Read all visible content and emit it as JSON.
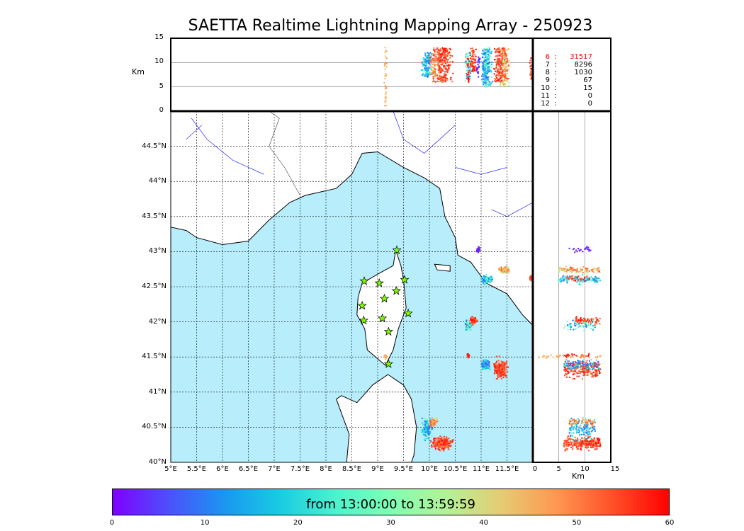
{
  "title": "SAETTA Realtime Lightning Mapping Array - 250923",
  "top_panel": {
    "ylabel": "Km",
    "yticks": [
      "0",
      "5",
      "10",
      "15"
    ]
  },
  "right_panel": {
    "xlabel": "Km",
    "xticks": [
      "0",
      "5",
      "10",
      "15"
    ]
  },
  "map": {
    "lat_ticks": [
      "40°N",
      "40.5°N",
      "41°N",
      "41.5°N",
      "42°N",
      "42.5°N",
      "43°N",
      "43.5°N",
      "44°N",
      "44.5°N"
    ],
    "lon_ticks": [
      "5°E",
      "5.5°E",
      "6°E",
      "6.5°E",
      "7°E",
      "7.5°E",
      "8°E",
      "8.5°E",
      "9°E",
      "9.5°E",
      "10°E",
      "10.5°E",
      "11°E",
      "11.5°E"
    ],
    "lon_range": [
      5,
      12
    ],
    "lat_range": [
      40,
      45
    ],
    "alt_range_km": [
      0,
      15
    ],
    "colors": {
      "sea": "#b8eefc",
      "land": "#ffffff",
      "rivers": "#0000ff",
      "station": "#7cfc00"
    },
    "stations": [
      [
        9.37,
        43.02
      ],
      [
        8.74,
        42.58
      ],
      [
        9.03,
        42.55
      ],
      [
        9.52,
        42.6
      ],
      [
        9.36,
        42.44
      ],
      [
        9.13,
        42.33
      ],
      [
        8.7,
        42.23
      ],
      [
        9.59,
        42.12
      ],
      [
        8.73,
        42.02
      ],
      [
        9.09,
        42.05
      ],
      [
        9.21,
        41.86
      ],
      [
        9.21,
        41.4
      ]
    ],
    "clusters": [
      {
        "lon": 10.25,
        "lat": 40.27,
        "dlon": 0.25,
        "dlat": 0.12,
        "alt": [
          6,
          13
        ],
        "minutes": [
          48,
          60
        ],
        "n": 260
      },
      {
        "lon": 9.95,
        "lat": 40.48,
        "dlon": 0.14,
        "dlat": 0.2,
        "alt": [
          7,
          12
        ],
        "minutes": [
          5,
          28
        ],
        "n": 120
      },
      {
        "lon": 10.08,
        "lat": 40.57,
        "dlon": 0.1,
        "dlat": 0.08,
        "alt": [
          7,
          12
        ],
        "minutes": [
          40,
          55
        ],
        "n": 60
      },
      {
        "lon": 11.38,
        "lat": 41.33,
        "dlon": 0.18,
        "dlat": 0.2,
        "alt": [
          6,
          13
        ],
        "minutes": [
          50,
          60
        ],
        "n": 220
      },
      {
        "lon": 11.08,
        "lat": 41.38,
        "dlon": 0.12,
        "dlat": 0.1,
        "alt": [
          6,
          13
        ],
        "minutes": [
          5,
          25
        ],
        "n": 90
      },
      {
        "lon": 11.45,
        "lat": 42.74,
        "dlon": 0.15,
        "dlat": 0.06,
        "alt": [
          5,
          13
        ],
        "minutes": [
          35,
          55
        ],
        "n": 110
      },
      {
        "lon": 11.12,
        "lat": 42.6,
        "dlon": 0.14,
        "dlat": 0.08,
        "alt": [
          5,
          13
        ],
        "minutes": [
          5,
          30
        ],
        "n": 120
      },
      {
        "lon": 10.85,
        "lat": 42.02,
        "dlon": 0.1,
        "dlat": 0.07,
        "alt": [
          8,
          13
        ],
        "minutes": [
          50,
          60
        ],
        "n": 70
      },
      {
        "lon": 10.75,
        "lat": 41.95,
        "dlon": 0.1,
        "dlat": 0.1,
        "alt": [
          6,
          12
        ],
        "minutes": [
          5,
          35
        ],
        "n": 60
      },
      {
        "lon": 10.75,
        "lat": 41.52,
        "dlon": 0.04,
        "dlat": 0.04,
        "alt": [
          6,
          11
        ],
        "minutes": [
          55,
          60
        ],
        "n": 25
      },
      {
        "lon": 11.97,
        "lat": 42.62,
        "dlon": 0.04,
        "dlat": 0.05,
        "alt": [
          6,
          11
        ],
        "minutes": [
          50,
          60
        ],
        "n": 30
      },
      {
        "lon": 10.95,
        "lat": 43.03,
        "dlon": 0.06,
        "dlat": 0.05,
        "alt": [
          6,
          12
        ],
        "minutes": [
          0,
          5
        ],
        "n": 20
      },
      {
        "lon": 9.15,
        "lat": 41.5,
        "dlon": 0.03,
        "dlat": 0.04,
        "alt": [
          1,
          14
        ],
        "minutes": [
          44,
          48
        ],
        "n": 40
      }
    ]
  },
  "counts": [
    {
      "stations": "6",
      "sources": "31517",
      "highlight": true
    },
    {
      "stations": "7",
      "sources": "8296"
    },
    {
      "stations": "8",
      "sources": "1030"
    },
    {
      "stations": "9",
      "sources": "67"
    },
    {
      "stations": "10",
      "sources": "15"
    },
    {
      "stations": "11",
      "sources": "0"
    },
    {
      "stations": "12",
      "sources": "0"
    }
  ],
  "colorbar": {
    "label": "from 13:00:00 to 13:59:59",
    "ticks": [
      "0",
      "10",
      "20",
      "30",
      "40",
      "50",
      "60"
    ],
    "range_minutes": [
      0,
      60
    ]
  }
}
